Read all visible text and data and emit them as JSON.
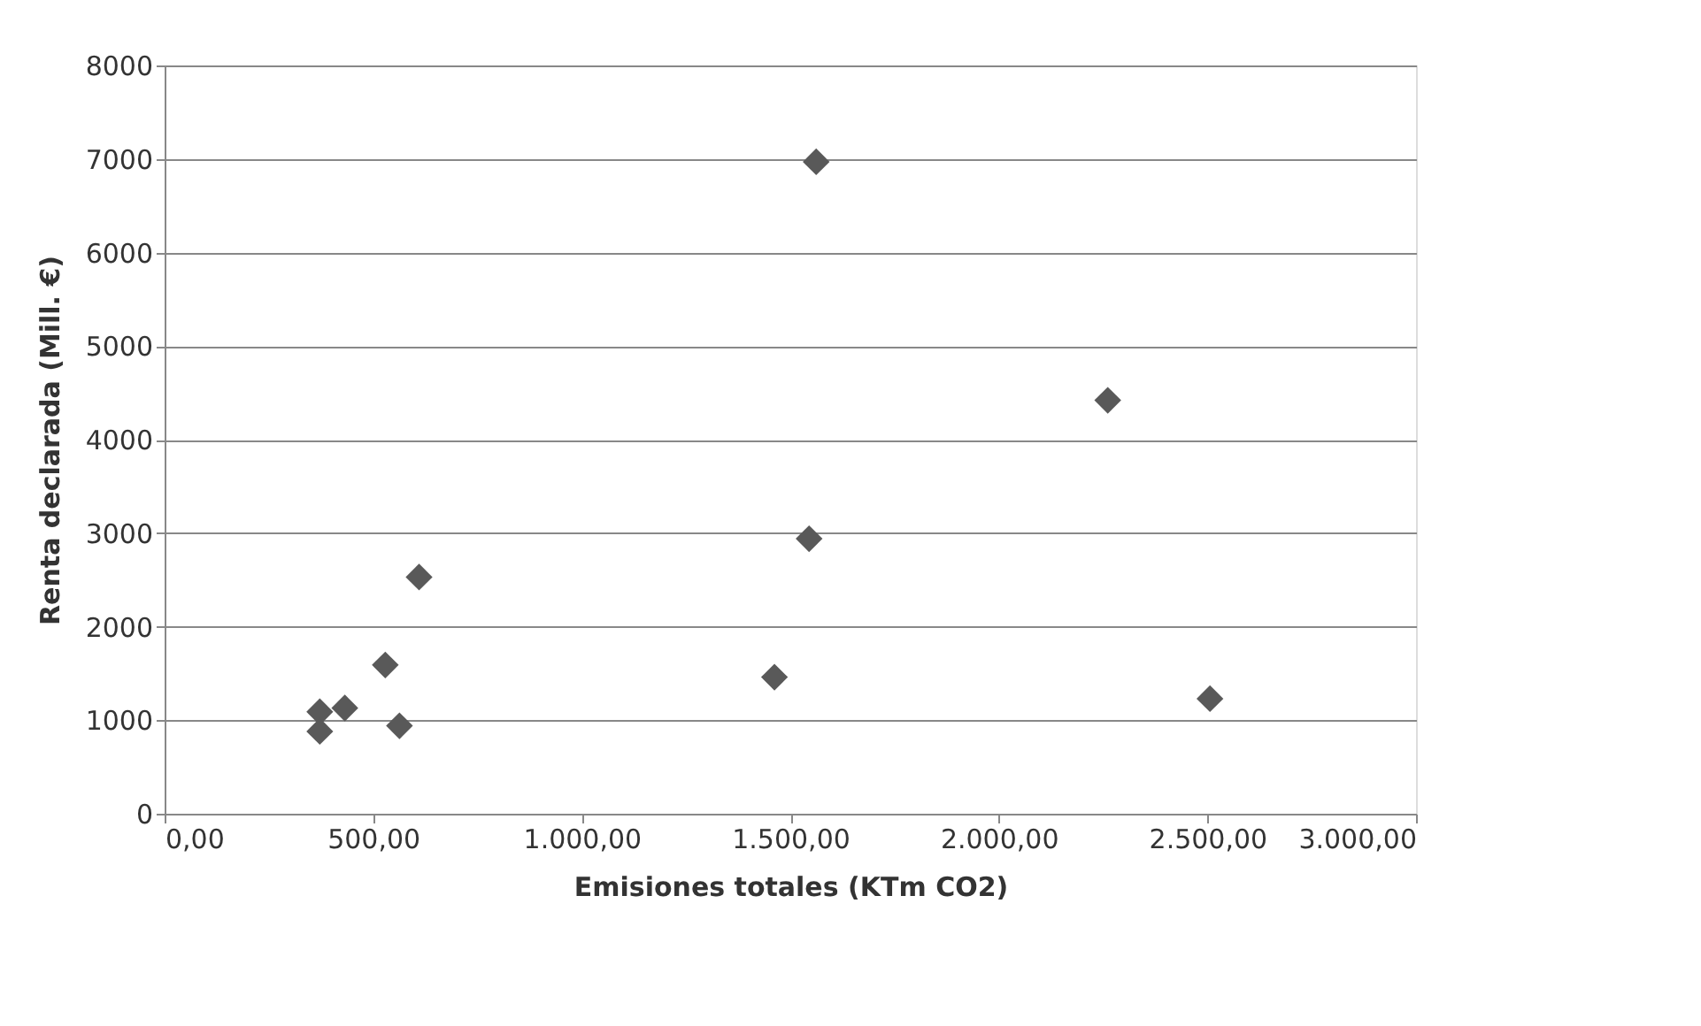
{
  "chart_data": {
    "type": "scatter",
    "xlabel": "Emisiones totales (KTm CO2)",
    "ylabel": "Renta declarada (Mill. €)",
    "x": [
      372,
      372,
      432,
      529,
      563,
      610,
      1462,
      1545,
      1562,
      2261,
      2506
    ],
    "series": [
      {
        "color": "#595959",
        "values": [
          1090,
          880,
          1130,
          1590,
          940,
          2530,
          1460,
          2940,
          6970,
          4420,
          1230
        ]
      }
    ],
    "xlim": [
      0,
      3000
    ],
    "ylim": [
      0,
      8000
    ],
    "xticks": [
      {
        "value": 0,
        "label": "0,00"
      },
      {
        "value": 500,
        "label": "500,00"
      },
      {
        "value": 1000,
        "label": "1.000,00"
      },
      {
        "value": 1500,
        "label": "1.500,00"
      },
      {
        "value": 2000,
        "label": "2.000,00"
      },
      {
        "value": 2500,
        "label": "2.500,00"
      },
      {
        "value": 3000,
        "label": "3.000,00"
      }
    ],
    "yticks": [
      0,
      1000,
      2000,
      3000,
      4000,
      5000,
      6000,
      7000,
      8000
    ],
    "grid": "y",
    "marker": "diamond"
  }
}
